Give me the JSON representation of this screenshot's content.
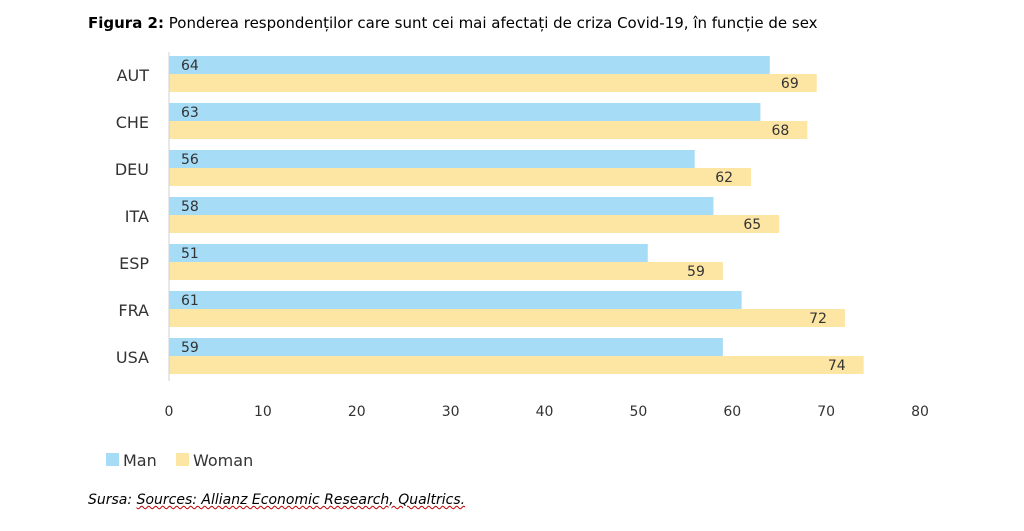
{
  "caption": {
    "label": "Figura 2:",
    "text": "Ponderea respondenților care sunt cei mai afectați de criza Covid-19, în funcție de sex"
  },
  "source": {
    "label": "Sursa:",
    "text": "Sources: Allianz Economic Research, Qualtrics."
  },
  "chart_data": {
    "type": "bar",
    "orientation": "horizontal",
    "categories": [
      "AUT",
      "CHE",
      "DEU",
      "ITA",
      "ESP",
      "FRA",
      "USA"
    ],
    "series": [
      {
        "name": "Man",
        "values": [
          64,
          63,
          56,
          58,
          51,
          61,
          59
        ],
        "color": "#a6dcf5"
      },
      {
        "name": "Woman",
        "values": [
          69,
          68,
          62,
          65,
          59,
          72,
          74
        ],
        "color": "#fde5a4"
      }
    ],
    "xlim": [
      0,
      80
    ],
    "xticks": [
      0,
      10,
      20,
      30,
      40,
      50,
      60,
      70,
      80
    ],
    "grid": false,
    "legend": "bottom-left",
    "data_labels": true
  }
}
